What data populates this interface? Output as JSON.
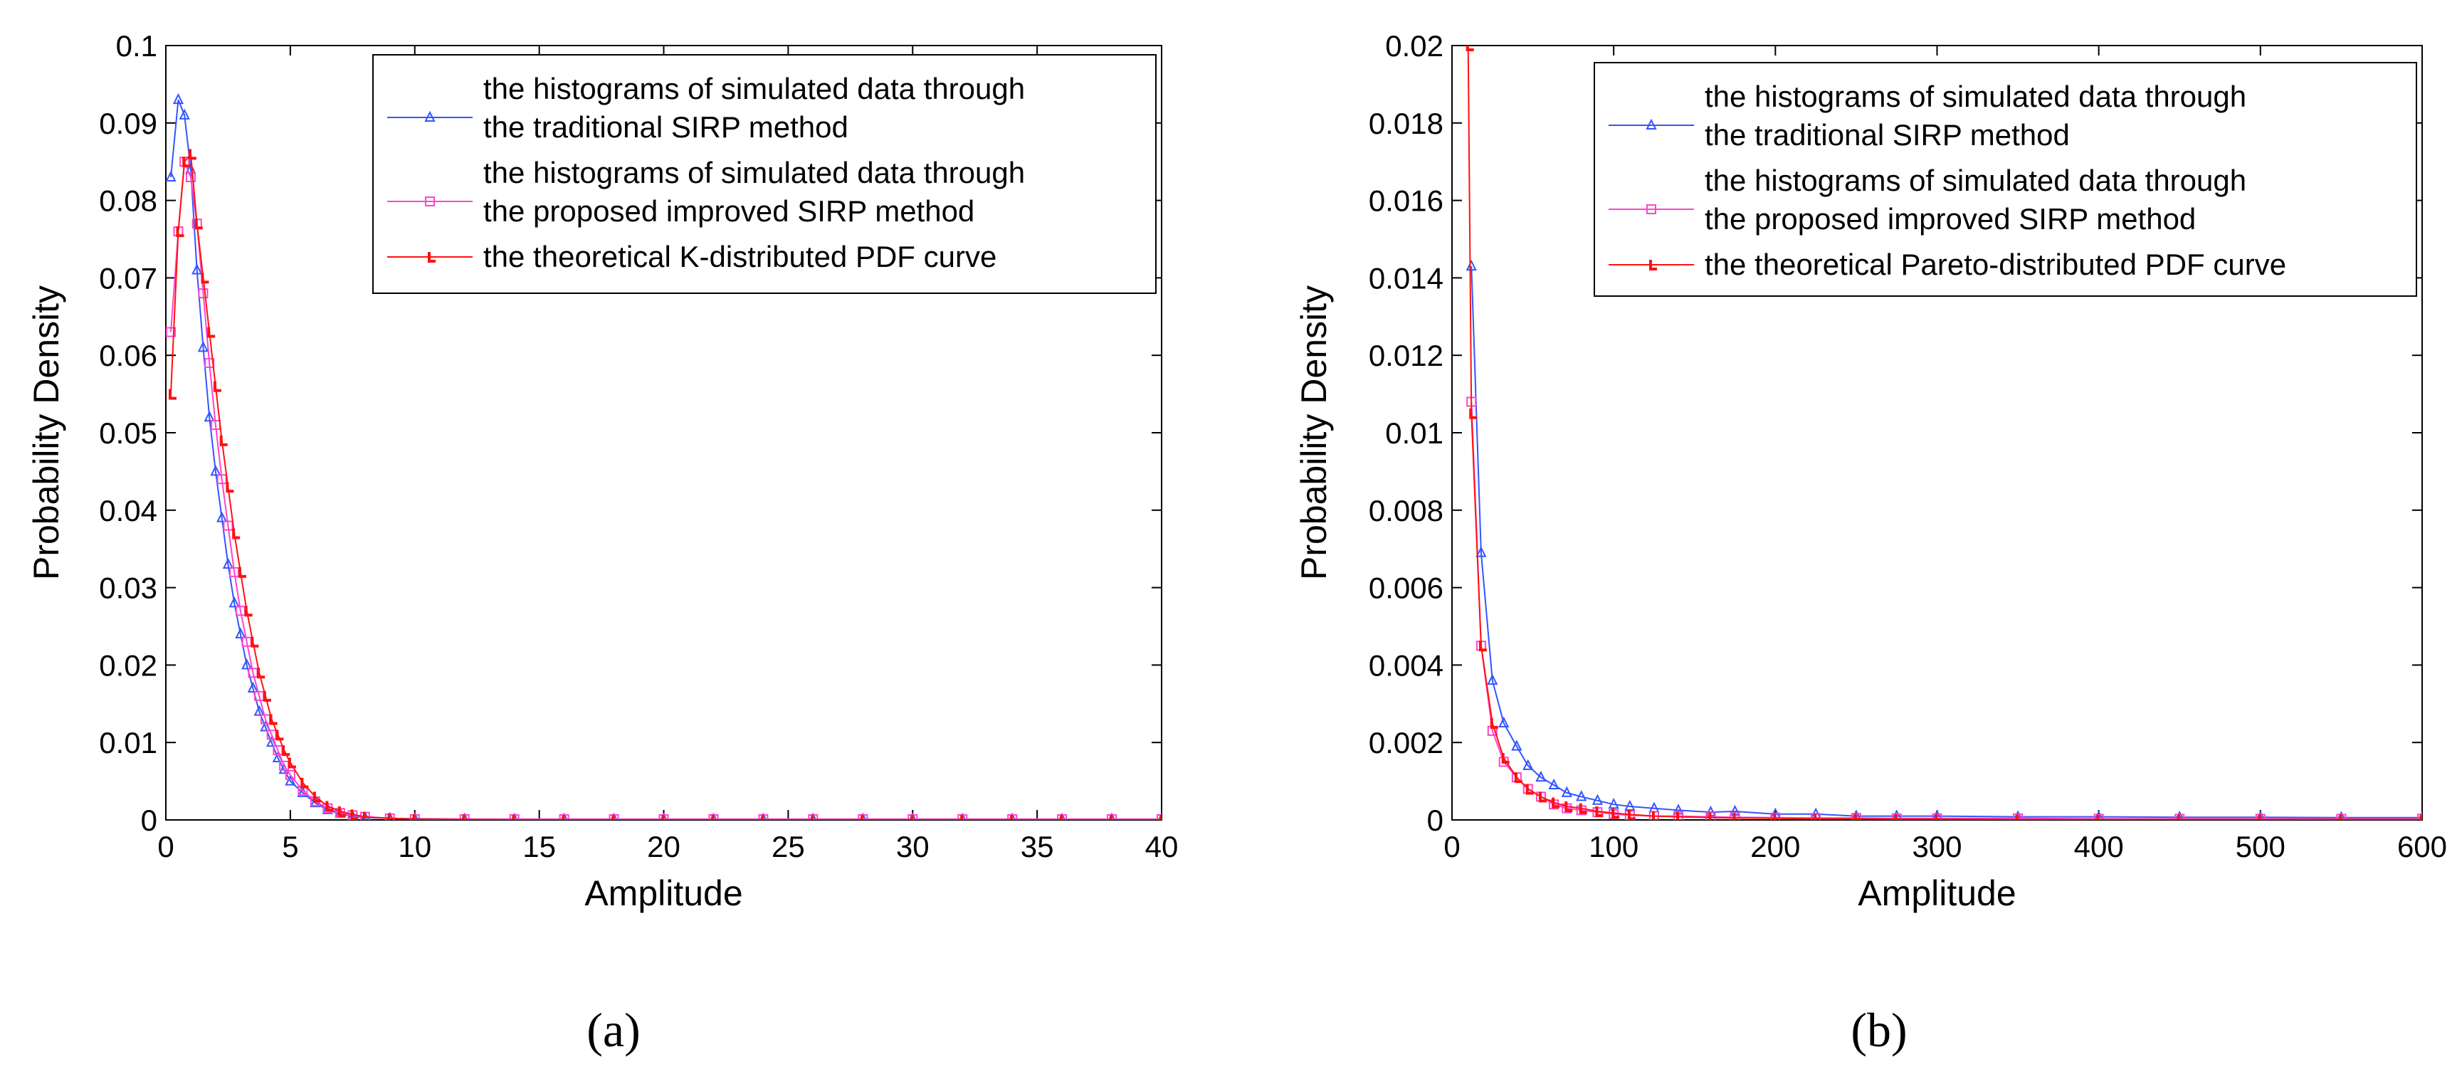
{
  "colors": {
    "traditional": "#3355ff",
    "improved": "#ff44cc",
    "theoretical": "#ff1111",
    "axis": "#000000"
  },
  "chart_data": [
    {
      "type": "line",
      "caption": "(a)",
      "xlabel": "Amplitude",
      "ylabel": "Probability Density",
      "xlim": [
        0,
        40
      ],
      "ylim": [
        0,
        0.1
      ],
      "xticks": [
        0,
        5,
        10,
        15,
        20,
        25,
        30,
        35,
        40
      ],
      "yticks": [
        0,
        0.01,
        0.02,
        0.03,
        0.04,
        0.05,
        0.06,
        0.07,
        0.08,
        0.09,
        0.1
      ],
      "xtick_labels": [
        "0",
        "5",
        "10",
        "15",
        "20",
        "25",
        "30",
        "35",
        "40"
      ],
      "ytick_labels": [
        "0",
        "0.01",
        "0.02",
        "0.03",
        "0.04",
        "0.05",
        "0.06",
        "0.07",
        "0.08",
        "0.09",
        "0.1"
      ],
      "legend_position": "top-right",
      "series": [
        {
          "name": "traditional",
          "legend": [
            "the histograms of simulated data through",
            "the traditional SIRP method"
          ],
          "marker": "triangle",
          "x": [
            0.2,
            0.5,
            0.75,
            1.0,
            1.25,
            1.5,
            1.75,
            2.0,
            2.25,
            2.5,
            2.75,
            3.0,
            3.25,
            3.5,
            3.75,
            4.0,
            4.25,
            4.5,
            4.75,
            5.0,
            5.5,
            6.0,
            6.5,
            7.0,
            7.5,
            8.0,
            9,
            10,
            12,
            14,
            16,
            18,
            20,
            22,
            24,
            26,
            28,
            30,
            32,
            34,
            36,
            38,
            40
          ],
          "y": [
            0.083,
            0.093,
            0.091,
            0.084,
            0.071,
            0.061,
            0.052,
            0.045,
            0.039,
            0.033,
            0.028,
            0.024,
            0.02,
            0.017,
            0.014,
            0.012,
            0.01,
            0.008,
            0.0065,
            0.005,
            0.0035,
            0.0022,
            0.0013,
            0.0008,
            0.0005,
            0.0003,
            0.0002,
            0.00015,
            0.0001,
            0.0001,
            0.0001,
            0.0001,
            0.0001,
            0.0001,
            0.0001,
            0.0001,
            0.0001,
            0.0001,
            0.0001,
            0.0001,
            0.0001,
            0.0001,
            0.0001
          ]
        },
        {
          "name": "improved",
          "legend": [
            "the histograms of simulated data through",
            "the proposed improved SIRP method"
          ],
          "marker": "square",
          "x": [
            0.2,
            0.5,
            0.75,
            1.0,
            1.25,
            1.5,
            1.75,
            2.0,
            2.25,
            2.5,
            2.75,
            3.0,
            3.25,
            3.5,
            3.75,
            4.0,
            4.25,
            4.5,
            4.75,
            5.0,
            5.5,
            6.0,
            6.5,
            7.0,
            7.5,
            8.0,
            9,
            10,
            12,
            14,
            16,
            18,
            20,
            22,
            24,
            26,
            28,
            30,
            32,
            34,
            36,
            38,
            40
          ],
          "y": [
            0.063,
            0.076,
            0.085,
            0.083,
            0.077,
            0.068,
            0.059,
            0.051,
            0.044,
            0.038,
            0.032,
            0.027,
            0.023,
            0.019,
            0.016,
            0.013,
            0.011,
            0.009,
            0.007,
            0.0058,
            0.0038,
            0.0024,
            0.0015,
            0.0009,
            0.0006,
            0.0004,
            0.0002,
            0.0001,
            0.0001,
            0.0001,
            0.0001,
            0.0001,
            0.0001,
            0.0001,
            0.0001,
            0.0001,
            0.0001,
            0.0001,
            0.0001,
            0.0001,
            0.0001,
            0.0001,
            0.0001
          ]
        },
        {
          "name": "theoretical",
          "legend": [
            "the theoretical K-distributed PDF curve"
          ],
          "marker": "tick",
          "x": [
            0.2,
            0.5,
            0.75,
            1.0,
            1.25,
            1.5,
            1.75,
            2.0,
            2.25,
            2.5,
            2.75,
            3.0,
            3.25,
            3.5,
            3.75,
            4.0,
            4.25,
            4.5,
            4.75,
            5.0,
            5.5,
            6.0,
            6.5,
            7.0,
            7.5,
            8.0,
            9,
            10,
            12,
            14,
            16,
            18,
            20,
            22,
            24,
            26,
            28,
            30,
            32,
            34,
            36,
            38,
            40
          ],
          "y": [
            0.055,
            0.076,
            0.085,
            0.086,
            0.077,
            0.07,
            0.063,
            0.056,
            0.049,
            0.043,
            0.037,
            0.032,
            0.027,
            0.023,
            0.019,
            0.016,
            0.013,
            0.011,
            0.009,
            0.0074,
            0.0048,
            0.003,
            0.0018,
            0.0011,
            0.0007,
            0.0004,
            0.0002,
            0.0001,
            5e-05,
            0,
            0,
            0,
            0,
            0,
            0,
            0,
            0,
            0,
            0,
            0,
            0,
            0,
            0
          ]
        }
      ]
    },
    {
      "type": "line",
      "caption": "(b)",
      "xlabel": "Amplitude",
      "ylabel": "Probability Density",
      "xlim": [
        0,
        600
      ],
      "ylim": [
        0,
        0.02
      ],
      "xticks": [
        0,
        100,
        200,
        300,
        400,
        500,
        600
      ],
      "yticks": [
        0,
        0.002,
        0.004,
        0.006,
        0.008,
        0.01,
        0.012,
        0.014,
        0.016,
        0.018,
        0.02
      ],
      "xtick_labels": [
        "0",
        "100",
        "200",
        "300",
        "400",
        "500",
        "600"
      ],
      "ytick_labels": [
        "0",
        "0.002",
        "0.004",
        "0.006",
        "0.008",
        "0.01",
        "0.012",
        "0.014",
        "0.016",
        "0.018",
        "0.02"
      ],
      "legend_position": "top-right",
      "series": [
        {
          "name": "traditional",
          "legend": [
            "the histograms of simulated data through",
            "the traditional SIRP method"
          ],
          "marker": "triangle",
          "x": [
            12,
            18,
            25,
            32,
            40,
            47,
            55,
            63,
            71,
            80,
            90,
            100,
            110,
            125,
            140,
            160,
            175,
            200,
            225,
            250,
            275,
            300,
            350,
            400,
            450,
            500,
            550,
            600
          ],
          "y": [
            0.0143,
            0.0069,
            0.0036,
            0.0025,
            0.0019,
            0.0014,
            0.0011,
            0.0009,
            0.0007,
            0.0006,
            0.0005,
            0.0004,
            0.00035,
            0.0003,
            0.00025,
            0.0002,
            0.00022,
            0.00015,
            0.00015,
            0.0001,
            0.0001,
            0.0001,
            8e-05,
            8e-05,
            7e-05,
            7e-05,
            6e-05,
            6e-05
          ]
        },
        {
          "name": "improved",
          "legend": [
            "the histograms of simulated data through",
            "the proposed improved SIRP method"
          ],
          "marker": "square",
          "x": [
            12,
            18,
            25,
            32,
            40,
            47,
            55,
            63,
            71,
            80,
            90,
            100,
            110,
            125,
            140,
            160,
            175,
            200,
            225,
            250,
            275,
            300,
            350,
            400,
            450,
            500,
            550,
            600
          ],
          "y": [
            0.0108,
            0.0045,
            0.0023,
            0.0015,
            0.0011,
            0.0008,
            0.0006,
            0.0004,
            0.0003,
            0.00025,
            0.0002,
            0.00015,
            0.00012,
            0.0001,
            0.0001,
            8e-05,
            7e-05,
            6e-05,
            5e-05,
            5e-05,
            4e-05,
            4e-05,
            4e-05,
            3e-05,
            3e-05,
            3e-05,
            3e-05,
            3e-05
          ]
        },
        {
          "name": "theoretical",
          "legend": [
            "the theoretical Pareto-distributed PDF curve"
          ],
          "marker": "tick",
          "x": [
            10,
            12,
            18,
            25,
            32,
            40,
            47,
            55,
            63,
            71,
            80,
            90,
            100,
            110,
            125,
            140,
            160,
            175,
            200,
            225,
            250,
            275,
            300,
            350,
            400,
            450,
            500,
            550,
            600
          ],
          "y": [
            0.02,
            0.0105,
            0.0045,
            0.0025,
            0.0016,
            0.0011,
            0.0008,
            0.0006,
            0.00045,
            0.00035,
            0.0003,
            0.00022,
            0.00018,
            0.00014,
            0.0001,
            8e-05,
            6e-05,
            5e-05,
            4e-05,
            3e-05,
            3e-05,
            2e-05,
            2e-05,
            1e-05,
            1e-05,
            1e-05,
            1e-05,
            1e-05,
            1e-05
          ]
        }
      ]
    }
  ]
}
